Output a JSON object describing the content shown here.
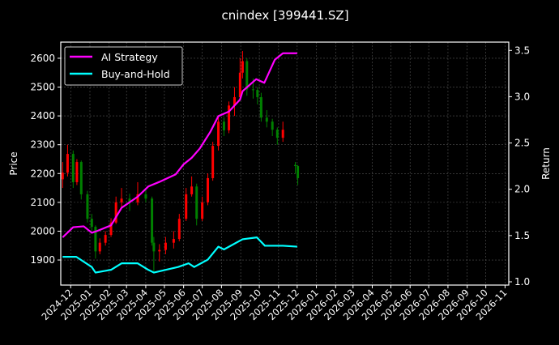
{
  "chart_data": {
    "type": "candlestick+line",
    "title": "cnindex [399441.SZ]",
    "ylabel_left": "Price",
    "ylabel_right": "Return",
    "xlim": [
      "2024-11-15",
      "2026-11-07"
    ],
    "ylim_left": [
      1813,
      2656
    ],
    "ylim_right": [
      0.965,
      3.59
    ],
    "grid": true,
    "legend_placement": "top-left",
    "x_ticks": [
      "2024-12",
      "2025-01",
      "2025-02",
      "2025-03",
      "2025-04",
      "2025-05",
      "2025-06",
      "2025-07",
      "2025-08",
      "2025-09",
      "2025-10",
      "2025-11",
      "2025-12",
      "2026-01",
      "2026-02",
      "2026-03",
      "2026-04",
      "2026-05",
      "2026-06",
      "2026-07",
      "2026-08",
      "2026-09",
      "2026-10",
      "2026-11"
    ],
    "y_ticks_left": [
      1900,
      2000,
      2100,
      2200,
      2300,
      2400,
      2500,
      2600
    ],
    "y_ticks_right": [
      1.0,
      1.5,
      2.0,
      2.5,
      3.0,
      3.5
    ],
    "colors": {
      "up": "#ff0000",
      "down": "#008000",
      "strategy": "#ff00ff",
      "buy_hold": "#00ffff",
      "background": "#000000",
      "grid": "#555555"
    },
    "candles": [
      [
        "2024-11-18",
        2180,
        2240,
        2150,
        2203
      ],
      [
        "2024-11-26",
        2203,
        2300,
        2190,
        2268
      ],
      [
        "2024-12-05",
        2268,
        2280,
        2150,
        2170
      ],
      [
        "2024-12-11",
        2170,
        2250,
        2160,
        2240
      ],
      [
        "2024-12-18",
        2240,
        2245,
        2110,
        2128
      ],
      [
        "2024-12-28",
        2128,
        2140,
        2030,
        2043
      ],
      [
        "2025-01-04",
        2043,
        2060,
        2000,
        2015
      ],
      [
        "2025-01-10",
        2015,
        2020,
        1905,
        1930
      ],
      [
        "2025-01-17",
        1930,
        1975,
        1920,
        1960
      ],
      [
        "2025-01-26",
        1960,
        2000,
        1950,
        1987
      ],
      [
        "2025-02-04",
        1987,
        2045,
        1980,
        2030
      ],
      [
        "2025-02-12",
        2030,
        2120,
        2025,
        2100
      ],
      [
        "2025-02-21",
        2100,
        2150,
        2080,
        2113
      ],
      [
        "2025-03-06",
        2113,
        2130,
        2070,
        2100
      ],
      [
        "2025-03-19",
        2100,
        2170,
        2090,
        2128
      ],
      [
        "2025-04-01",
        2128,
        2150,
        2100,
        2113
      ],
      [
        "2025-04-11",
        2113,
        2120,
        1950,
        1960
      ],
      [
        "2025-04-14",
        1960,
        1980,
        1860,
        1930
      ],
      [
        "2025-04-23",
        1930,
        1955,
        1895,
        1935
      ],
      [
        "2025-05-03",
        1935,
        1980,
        1920,
        1960
      ],
      [
        "2025-05-16",
        1960,
        2000,
        1940,
        1973
      ],
      [
        "2025-05-25",
        1973,
        2060,
        1965,
        2043
      ],
      [
        "2025-06-05",
        2043,
        2150,
        2035,
        2128
      ],
      [
        "2025-06-14",
        2128,
        2190,
        2120,
        2155
      ],
      [
        "2025-06-22",
        2155,
        2165,
        2020,
        2043
      ],
      [
        "2025-07-01",
        2043,
        2120,
        2035,
        2100
      ],
      [
        "2025-07-10",
        2100,
        2200,
        2090,
        2184
      ],
      [
        "2025-07-18",
        2184,
        2310,
        2175,
        2296
      ],
      [
        "2025-07-27",
        2296,
        2400,
        2280,
        2380
      ],
      [
        "2025-08-05",
        2380,
        2395,
        2330,
        2350
      ],
      [
        "2025-08-13",
        2350,
        2450,
        2340,
        2436
      ],
      [
        "2025-08-22",
        2436,
        2500,
        2400,
        2465
      ],
      [
        "2025-08-31",
        2465,
        2600,
        2455,
        2550
      ],
      [
        "2025-09-04",
        2550,
        2625,
        2530,
        2590
      ],
      [
        "2025-09-11",
        2590,
        2600,
        2470,
        2492
      ],
      [
        "2025-09-21",
        2492,
        2530,
        2460,
        2490
      ],
      [
        "2025-09-28",
        2490,
        2500,
        2440,
        2465
      ],
      [
        "2025-10-04",
        2465,
        2480,
        2380,
        2394
      ],
      [
        "2025-10-13",
        2394,
        2420,
        2360,
        2380
      ],
      [
        "2025-10-22",
        2380,
        2390,
        2330,
        2352
      ],
      [
        "2025-10-30",
        2352,
        2360,
        2300,
        2324
      ],
      [
        "2025-11-08",
        2324,
        2380,
        2310,
        2352
      ],
      [
        "2025-11-28",
        2230,
        2240,
        2200,
        2226
      ],
      [
        "2025-12-02",
        2226,
        2230,
        2160,
        2184
      ]
    ],
    "series": [
      {
        "name": "AI Strategy",
        "axis": "right",
        "x": [
          "2024-11-18",
          "2024-12-05",
          "2024-12-22",
          "2025-01-04",
          "2025-01-13",
          "2025-02-04",
          "2025-02-21",
          "2025-03-19",
          "2025-04-05",
          "2025-04-23",
          "2025-05-19",
          "2025-06-01",
          "2025-06-14",
          "2025-06-27",
          "2025-07-14",
          "2025-07-27",
          "2025-08-13",
          "2025-08-31",
          "2025-09-04",
          "2025-09-26",
          "2025-10-09",
          "2025-10-26",
          "2025-11-08",
          "2025-12-01"
        ],
        "values": [
          1.48,
          1.59,
          1.6,
          1.53,
          1.55,
          1.61,
          1.8,
          1.92,
          2.03,
          2.08,
          2.16,
          2.27,
          2.34,
          2.44,
          2.62,
          2.79,
          2.84,
          2.97,
          3.06,
          3.19,
          3.15,
          3.4,
          3.47,
          3.47
        ]
      },
      {
        "name": "Buy-and-Hold",
        "axis": "right",
        "x": [
          "2024-11-18",
          "2024-12-10",
          "2025-01-04",
          "2025-01-10",
          "2025-02-04",
          "2025-02-21",
          "2025-03-19",
          "2025-04-05",
          "2025-04-14",
          "2025-05-23",
          "2025-06-09",
          "2025-06-18",
          "2025-07-10",
          "2025-07-27",
          "2025-08-05",
          "2025-09-04",
          "2025-09-27",
          "2025-10-10",
          "2025-11-08",
          "2025-12-01"
        ],
        "values": [
          1.27,
          1.27,
          1.16,
          1.1,
          1.13,
          1.2,
          1.2,
          1.13,
          1.1,
          1.16,
          1.2,
          1.16,
          1.24,
          1.38,
          1.35,
          1.46,
          1.48,
          1.39,
          1.39,
          1.38
        ]
      }
    ]
  }
}
